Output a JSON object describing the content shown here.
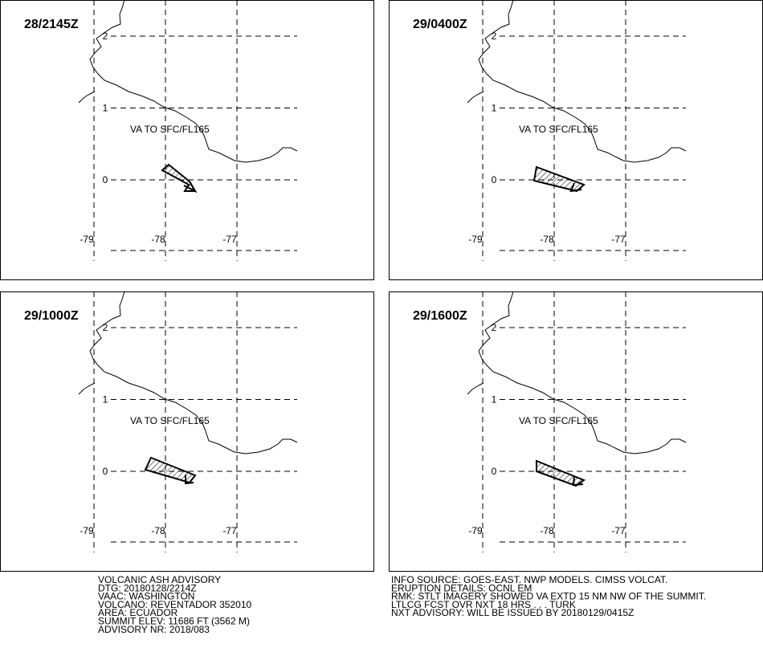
{
  "panels": [
    {
      "time": "28/2145Z",
      "annotation": "VA TO SFC/FL165",
      "lat_ticks": [
        2,
        1,
        0
      ],
      "lon_ticks": [
        -79,
        -78,
        -77
      ]
    },
    {
      "time": "29/0400Z",
      "annotation": "VA TO SFC/FL165",
      "lat_ticks": [
        2,
        1,
        0
      ],
      "lon_ticks": [
        -79,
        -78,
        -77
      ]
    },
    {
      "time": "29/1000Z",
      "annotation": "VA TO SFC/FL165",
      "lat_ticks": [
        2,
        1,
        0
      ],
      "lon_ticks": [
        -79,
        -78,
        -77
      ]
    },
    {
      "time": "29/1600Z",
      "annotation": "VA TO SFC/FL165",
      "lat_ticks": [
        2,
        1,
        0
      ],
      "lon_ticks": [
        -79,
        -78,
        -77
      ]
    }
  ],
  "advisory_left": [
    "VOLCANIC ASH ADVISORY",
    "DTG: 20180128/2214Z",
    "VAAC: WASHINGTON",
    "VOLCANO: REVENTADOR 352010",
    "AREA: ECUADOR",
    "SUMMIT ELEV: 11686 FT (3562 M)",
    "ADVISORY NR: 2018/083"
  ],
  "advisory_right": [
    "INFO SOURCE: GOES-EAST. NWP MODELS. CIMSS VOLCAT.",
    "ERUPTION DETAILS: OCNL EM",
    "RMK: STLT IMAGERY SHOWED VA EXTD 15 NM NW OF THE SUMMIT.",
    "LTLCG FCST OVR NXT 18 HRS . . . TURK",
    "NXT ADVISORY: WILL BE ISSUED BY 20180129/0415Z"
  ]
}
